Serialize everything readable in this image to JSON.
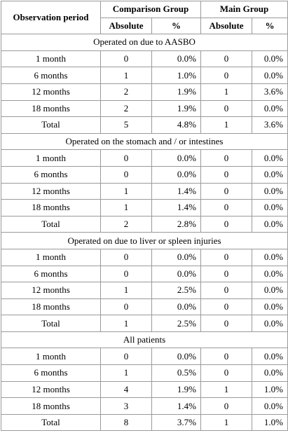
{
  "header": {
    "observation_period": "Observation period",
    "comparison_group": "Comparison Group",
    "main_group": "Main Group",
    "absolute": "Absolute",
    "percent": "%"
  },
  "sections": [
    {
      "title": "Operated on due to AASBO",
      "rows": [
        {
          "period": "1 month",
          "comp_abs": "0",
          "comp_pct": "0.0%",
          "main_abs": "0",
          "main_pct": "0.0%"
        },
        {
          "period": "6 months",
          "comp_abs": "1",
          "comp_pct": "1.0%",
          "main_abs": "0",
          "main_pct": "0.0%"
        },
        {
          "period": "12 months",
          "comp_abs": "2",
          "comp_pct": "1.9%",
          "main_abs": "1",
          "main_pct": "3.6%"
        },
        {
          "period": "18 months",
          "comp_abs": "2",
          "comp_pct": "1.9%",
          "main_abs": "0",
          "main_pct": "0.0%"
        },
        {
          "period": "Total",
          "comp_abs": "5",
          "comp_pct": "4.8%",
          "main_abs": "1",
          "main_pct": "3.6%"
        }
      ]
    },
    {
      "title": "Operated on the stomach and / or intestines",
      "rows": [
        {
          "period": "1 month",
          "comp_abs": "0",
          "comp_pct": "0.0%",
          "main_abs": "0",
          "main_pct": "0.0%"
        },
        {
          "period": "6 months",
          "comp_abs": "0",
          "comp_pct": "0.0%",
          "main_abs": "0",
          "main_pct": "0.0%"
        },
        {
          "period": "12 months",
          "comp_abs": "1",
          "comp_pct": "1.4%",
          "main_abs": "0",
          "main_pct": "0.0%"
        },
        {
          "period": "18 months",
          "comp_abs": "1",
          "comp_pct": "1.4%",
          "main_abs": "0",
          "main_pct": "0.0%"
        },
        {
          "period": "Total",
          "comp_abs": "2",
          "comp_pct": "2.8%",
          "main_abs": "0",
          "main_pct": "0.0%"
        }
      ]
    },
    {
      "title": "Operated on due to liver or spleen injuries",
      "rows": [
        {
          "period": "1 month",
          "comp_abs": "0",
          "comp_pct": "0.0%",
          "main_abs": "0",
          "main_pct": "0.0%"
        },
        {
          "period": "6 months",
          "comp_abs": "0",
          "comp_pct": "0.0%",
          "main_abs": "0",
          "main_pct": "0.0%"
        },
        {
          "period": "12 months",
          "comp_abs": "1",
          "comp_pct": "2.5%",
          "main_abs": "0",
          "main_pct": "0.0%"
        },
        {
          "period": "18 months",
          "comp_abs": "0",
          "comp_pct": "0.0%",
          "main_abs": "0",
          "main_pct": "0.0%"
        },
        {
          "period": "Total",
          "comp_abs": "1",
          "comp_pct": "2.5%",
          "main_abs": "0",
          "main_pct": "0.0%"
        }
      ]
    },
    {
      "title": "All patients",
      "rows": [
        {
          "period": "1 month",
          "comp_abs": "0",
          "comp_pct": "0.0%",
          "main_abs": "0",
          "main_pct": "0.0%"
        },
        {
          "period": "6 months",
          "comp_abs": "1",
          "comp_pct": "0.5%",
          "main_abs": "0",
          "main_pct": "0.0%"
        },
        {
          "period": "12 months",
          "comp_abs": "4",
          "comp_pct": "1.9%",
          "main_abs": "1",
          "main_pct": "1.0%"
        },
        {
          "period": "18 months",
          "comp_abs": "3",
          "comp_pct": "1.4%",
          "main_abs": "0",
          "main_pct": "0.0%"
        },
        {
          "period": "Total",
          "comp_abs": "8",
          "comp_pct": "3.7%",
          "main_abs": "1",
          "main_pct": "1.0%"
        }
      ]
    }
  ]
}
